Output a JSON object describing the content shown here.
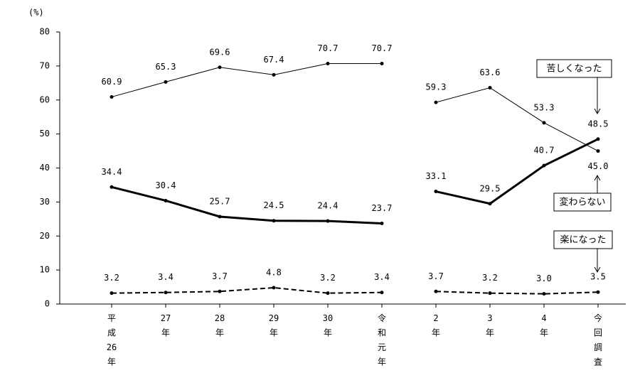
{
  "chart_data": {
    "type": "line",
    "y_label": "(%)",
    "categories": [
      "平成26年",
      "27年",
      "28年",
      "29年",
      "30年",
      "令和元年",
      "2年",
      "3年",
      "4年",
      "今回調査"
    ],
    "gap_after_index": 5,
    "ylim": [
      0,
      80
    ],
    "yticks": [
      0,
      10,
      20,
      30,
      40,
      50,
      60,
      70,
      80
    ],
    "series": [
      {
        "name": "変わらない",
        "color": "#000000",
        "width": 1,
        "dashed": false,
        "values": [
          60.9,
          65.3,
          69.6,
          67.4,
          70.7,
          70.7,
          59.3,
          63.6,
          53.3,
          45.0
        ],
        "value_labels": [
          "60.9",
          "65.3",
          "69.6",
          "67.4",
          "70.7",
          "70.7",
          "59.3",
          "63.6",
          "53.3",
          "45.0"
        ]
      },
      {
        "name": "苦しくなった",
        "color": "#000000",
        "width": 3,
        "dashed": false,
        "values": [
          34.4,
          30.4,
          25.7,
          24.5,
          24.4,
          23.7,
          33.1,
          29.5,
          40.7,
          48.5
        ],
        "value_labels": [
          "34.4",
          "30.4",
          "25.7",
          "24.5",
          "24.4",
          "23.7",
          "33.1",
          "29.5",
          "40.7",
          "48.5"
        ]
      },
      {
        "name": "楽になった",
        "color": "#000000",
        "width": 2,
        "dashed": true,
        "values": [
          3.2,
          3.4,
          3.7,
          4.8,
          3.2,
          3.4,
          3.7,
          3.2,
          3.0,
          3.5
        ],
        "value_labels": [
          "3.2",
          "3.4",
          "3.7",
          "4.8",
          "3.2",
          "3.4",
          "3.7",
          "3.2",
          "3.0",
          "3.5"
        ]
      }
    ]
  }
}
